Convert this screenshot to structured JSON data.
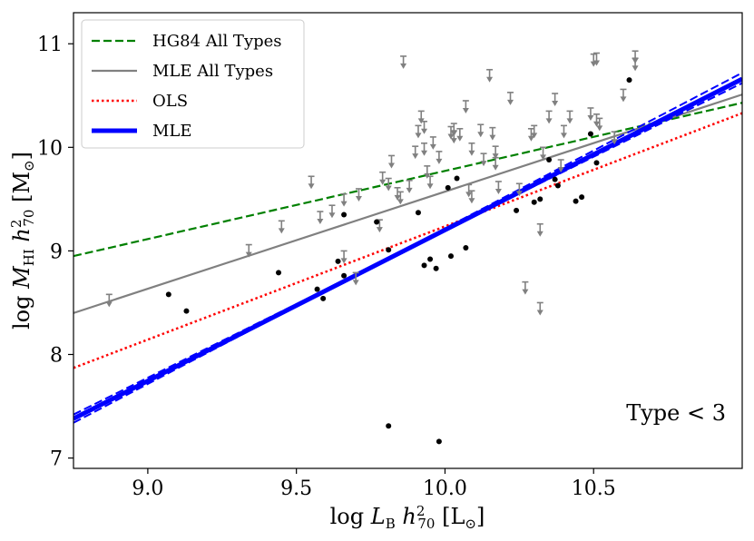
{
  "chart_data": {
    "type": "scatter",
    "title": "",
    "xlabel": "log L_B h²₇₀ [L⊙]",
    "ylabel": "log M_HI h²₇₀ [M⊙]",
    "xlim": [
      8.75,
      11.0
    ],
    "ylim": [
      6.9,
      11.3
    ],
    "grid": false,
    "x_ticks": [
      9.0,
      9.5,
      10.0,
      10.5
    ],
    "x_tick_labels": [
      "9.0",
      "9.5",
      "10.0",
      "10.5"
    ],
    "y_ticks": [
      7,
      8,
      9,
      10,
      11
    ],
    "y_tick_labels": [
      "7",
      "8",
      "9",
      "10",
      "11"
    ],
    "annotation": "Type < 3",
    "legend_position": "top-left",
    "lines": [
      {
        "name": "HG84 All Types",
        "color": "#008000",
        "style": "dashed",
        "width": 2.2,
        "points": [
          [
            8.75,
            8.95
          ],
          [
            11.0,
            10.43
          ]
        ]
      },
      {
        "name": "MLE All Types",
        "color": "#808080",
        "style": "solid",
        "width": 2.2,
        "points": [
          [
            8.75,
            8.4
          ],
          [
            11.0,
            10.51
          ]
        ]
      },
      {
        "name": "OLS",
        "color": "#ff0000",
        "style": "dotted",
        "width": 2.5,
        "points": [
          [
            8.75,
            7.87
          ],
          [
            11.0,
            10.33
          ]
        ]
      },
      {
        "name": "MLE",
        "color": "#0000ff",
        "style": "solid",
        "width": 5,
        "points": [
          [
            8.75,
            7.38
          ],
          [
            11.0,
            10.66
          ]
        ]
      },
      {
        "name": "",
        "color": "#0000ff",
        "style": "dashed",
        "width": 2,
        "points": [
          [
            8.75,
            7.34
          ],
          [
            11.0,
            10.72
          ]
        ]
      },
      {
        "name": "",
        "color": "#0000ff",
        "style": "dashed",
        "width": 2,
        "points": [
          [
            8.75,
            7.42
          ],
          [
            11.0,
            10.62
          ]
        ]
      }
    ],
    "detections": [
      [
        9.07,
        8.58
      ],
      [
        9.13,
        8.42
      ],
      [
        9.44,
        8.79
      ],
      [
        9.57,
        8.63
      ],
      [
        9.59,
        8.54
      ],
      [
        9.64,
        8.9
      ],
      [
        9.66,
        8.76
      ],
      [
        9.66,
        9.35
      ],
      [
        9.77,
        9.28
      ],
      [
        9.81,
        9.01
      ],
      [
        9.91,
        9.37
      ],
      [
        9.93,
        8.86
      ],
      [
        9.95,
        8.92
      ],
      [
        9.97,
        8.83
      ],
      [
        10.01,
        9.61
      ],
      [
        10.02,
        8.95
      ],
      [
        10.04,
        9.7
      ],
      [
        10.07,
        9.03
      ],
      [
        10.24,
        9.39
      ],
      [
        10.3,
        9.47
      ],
      [
        10.32,
        9.5
      ],
      [
        10.35,
        9.88
      ],
      [
        10.37,
        9.69
      ],
      [
        10.38,
        9.63
      ],
      [
        10.44,
        9.48
      ],
      [
        10.46,
        9.52
      ],
      [
        10.49,
        10.13
      ],
      [
        10.51,
        9.85
      ],
      [
        10.62,
        10.65
      ],
      [
        9.81,
        7.31
      ],
      [
        9.98,
        7.16
      ]
    ],
    "upper_limits": [
      [
        8.87,
        8.58
      ],
      [
        9.34,
        9.06
      ],
      [
        9.45,
        9.29
      ],
      [
        9.55,
        9.72
      ],
      [
        9.58,
        9.38
      ],
      [
        9.62,
        9.44
      ],
      [
        9.66,
        9.55
      ],
      [
        9.66,
        9.0
      ],
      [
        9.7,
        8.79
      ],
      [
        9.71,
        9.6
      ],
      [
        9.78,
        9.3
      ],
      [
        9.79,
        9.76
      ],
      [
        9.81,
        9.7
      ],
      [
        9.82,
        9.92
      ],
      [
        9.84,
        9.61
      ],
      [
        9.85,
        9.57
      ],
      [
        9.86,
        10.88
      ],
      [
        9.88,
        9.68
      ],
      [
        9.9,
        10.01
      ],
      [
        9.91,
        10.21
      ],
      [
        9.92,
        10.35
      ],
      [
        9.93,
        10.25
      ],
      [
        9.93,
        10.04
      ],
      [
        9.94,
        9.82
      ],
      [
        9.95,
        9.72
      ],
      [
        9.96,
        10.1
      ],
      [
        9.98,
        9.96
      ],
      [
        10.02,
        10.2
      ],
      [
        10.03,
        10.23
      ],
      [
        10.03,
        10.16
      ],
      [
        10.05,
        10.18
      ],
      [
        10.07,
        10.45
      ],
      [
        10.08,
        9.64
      ],
      [
        10.09,
        9.58
      ],
      [
        10.09,
        10.04
      ],
      [
        10.12,
        10.22
      ],
      [
        10.13,
        9.94
      ],
      [
        10.15,
        10.75
      ],
      [
        10.16,
        10.19
      ],
      [
        10.17,
        9.9
      ],
      [
        10.17,
        10.01
      ],
      [
        10.18,
        9.67
      ],
      [
        10.22,
        10.53
      ],
      [
        10.25,
        9.65
      ],
      [
        10.29,
        10.18
      ],
      [
        10.3,
        10.21
      ],
      [
        10.32,
        9.26
      ],
      [
        10.33,
        10.0
      ],
      [
        10.35,
        10.35
      ],
      [
        10.37,
        10.52
      ],
      [
        10.39,
        9.88
      ],
      [
        10.4,
        10.21
      ],
      [
        10.42,
        10.35
      ],
      [
        10.49,
        10.38
      ],
      [
        10.5,
        10.9
      ],
      [
        10.51,
        10.91
      ],
      [
        10.51,
        10.32
      ],
      [
        10.52,
        10.28
      ],
      [
        10.6,
        10.56
      ],
      [
        10.64,
        10.93
      ],
      [
        10.64,
        10.86
      ],
      [
        10.27,
        8.7
      ],
      [
        10.32,
        8.5
      ],
      [
        10.57,
        10.15
      ]
    ]
  }
}
